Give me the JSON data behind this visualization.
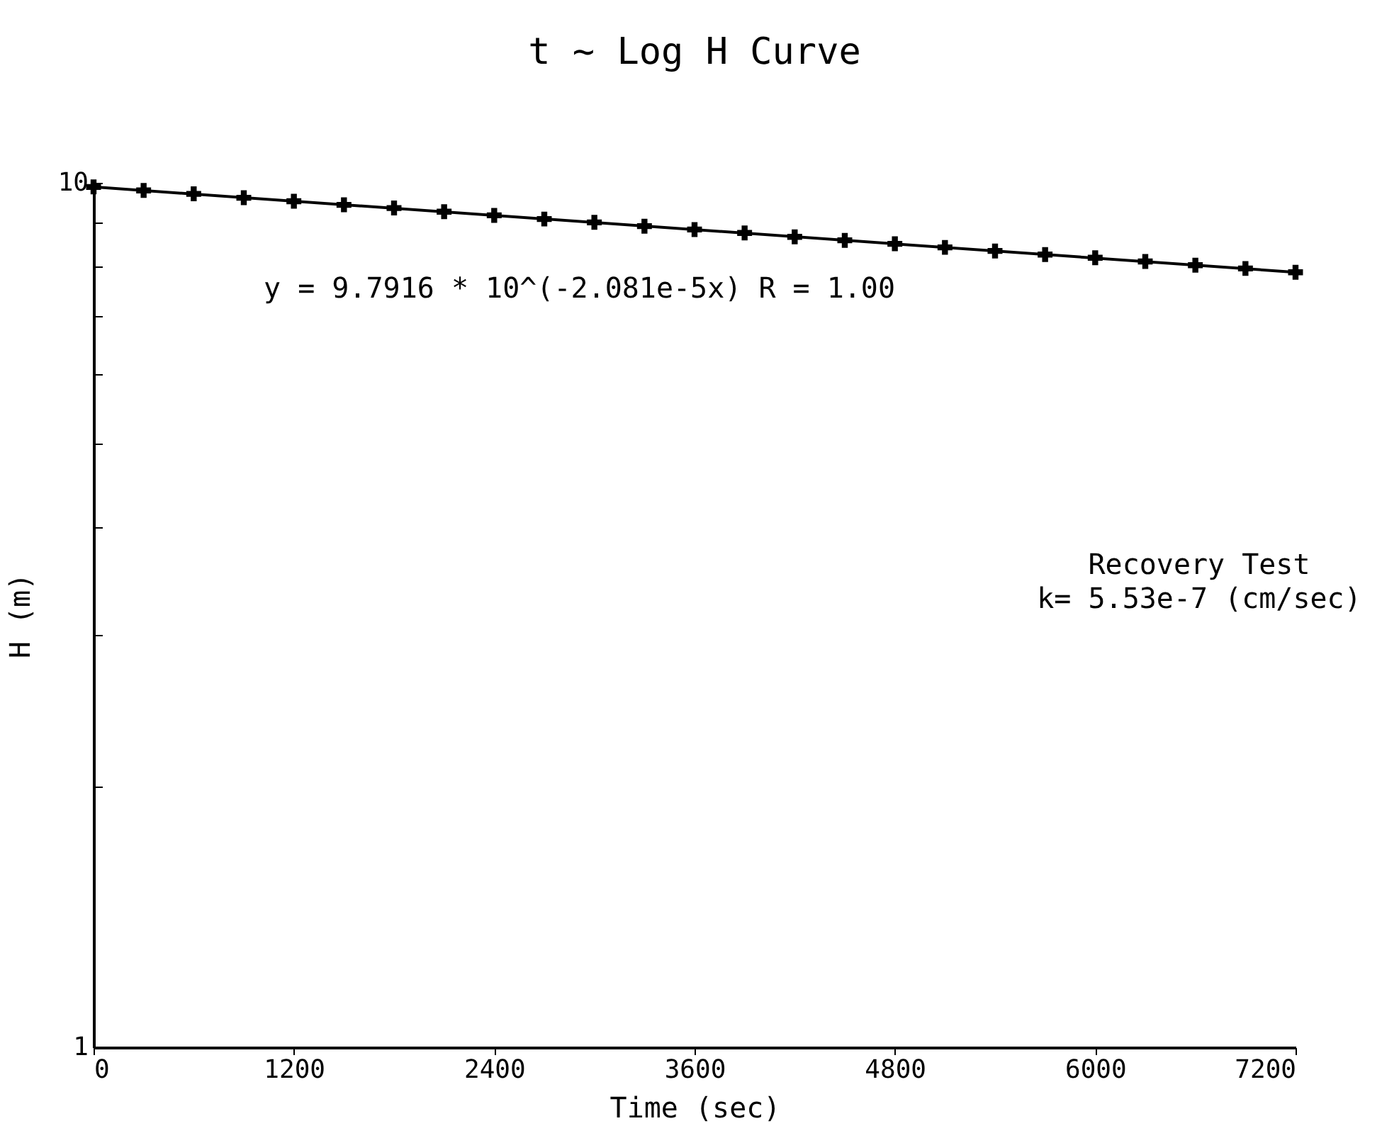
{
  "chart_data": {
    "type": "scatter",
    "title": "t ~ Log H Curve",
    "xlabel": "Time (sec)",
    "ylabel": "H (m)",
    "x": [
      0,
      300,
      600,
      900,
      1200,
      1500,
      1800,
      2100,
      2400,
      2700,
      3000,
      3300,
      3600,
      3900,
      4200,
      4500,
      4800,
      5100,
      5400,
      5700,
      6000,
      6300,
      6600,
      6900,
      7200
    ],
    "series": [
      {
        "color": "#000000",
        "values": [
          9.89,
          9.8,
          9.71,
          9.61,
          9.52,
          9.43,
          9.35,
          9.26,
          9.17,
          9.08,
          9.0,
          8.91,
          8.83,
          8.75,
          8.66,
          8.58,
          8.5,
          8.42,
          8.34,
          8.26,
          8.19,
          8.11,
          8.03,
          7.96,
          7.88
        ]
      },
      {
        "type": "line",
        "marker": "none",
        "color": "#000000",
        "x": [
          0,
          7200
        ],
        "values": [
          9.89,
          7.88
        ]
      }
    ],
    "marker": "cross",
    "line_style": "solid",
    "log": true,
    "grid": false,
    "xlim": [
      0,
      7200
    ],
    "xticks": [
      0,
      1200,
      2400,
      3600,
      4800,
      6000,
      7200
    ],
    "ylim": [
      1,
      10
    ],
    "yticks": [
      1,
      {
        "value": 2,
        "label": null
      },
      {
        "value": 3,
        "label": null
      },
      {
        "value": 4,
        "label": null
      },
      {
        "value": 5,
        "label": null
      },
      {
        "value": 6,
        "label": null
      },
      {
        "value": 7,
        "label": null
      },
      {
        "value": 8,
        "label": null
      },
      {
        "value": 9,
        "label": null
      },
      10
    ],
    "annotations": [
      "y = 9.7916 * 10^(-2.081e-5x)    R = 1.00",
      "Recovery Test",
      "k= 5.53e-7 (cm/sec)"
    ]
  }
}
